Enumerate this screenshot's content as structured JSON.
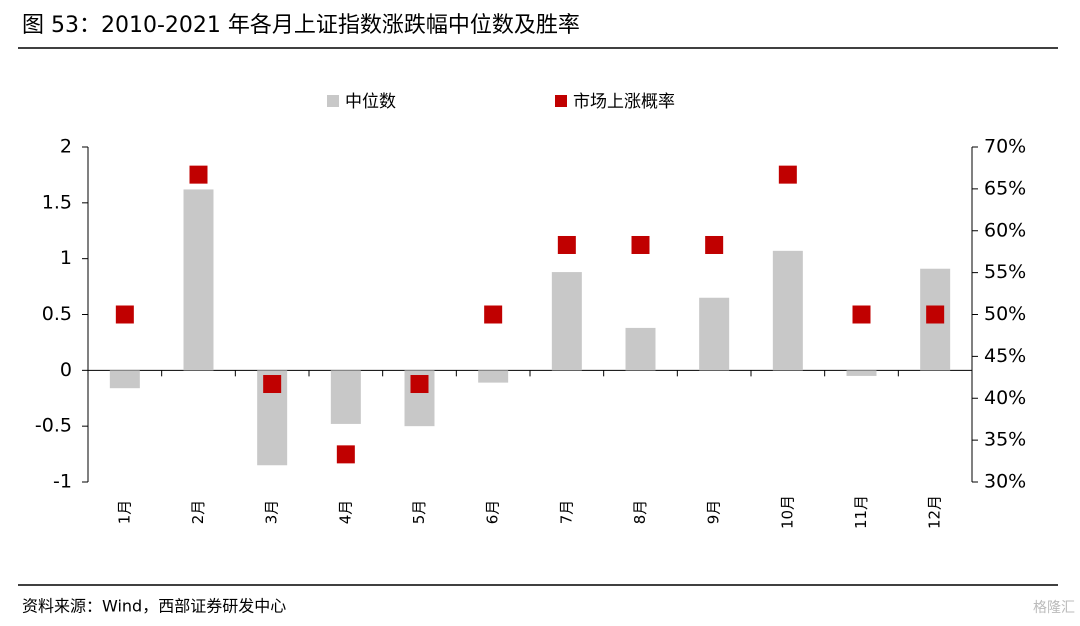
{
  "chart_data": {
    "type": "bar",
    "title": "图 53：2010-2021 年各月上证指数涨跌幅中位数及胜率",
    "source": "资料来源：Wind，西部证券研发中心",
    "watermark": "格隆汇",
    "categories": [
      "1月",
      "2月",
      "3月",
      "4月",
      "5月",
      "6月",
      "7月",
      "8月",
      "9月",
      "10月",
      "11月",
      "12月"
    ],
    "series": [
      {
        "name": "中位数",
        "type": "bar",
        "color": "#c8c8c8",
        "values": [
          -0.16,
          1.62,
          -0.85,
          -0.48,
          -0.5,
          -0.11,
          0.88,
          0.38,
          0.65,
          1.07,
          -0.05,
          0.91
        ]
      },
      {
        "name": "市场上涨概率",
        "type": "scatter",
        "axis": "y2",
        "color": "#c00000",
        "values": [
          50,
          66.7,
          41.7,
          33.3,
          41.7,
          50,
          58.3,
          58.3,
          58.3,
          66.7,
          50,
          50
        ]
      }
    ],
    "ylim": [
      -1,
      2
    ],
    "yticks": [
      -1,
      -0.5,
      0,
      0.5,
      1,
      1.5,
      2
    ],
    "y2lim": [
      30,
      70
    ],
    "y2ticks": [
      {
        "value": 30,
        "label": "30%"
      },
      {
        "value": 35,
        "label": "35%"
      },
      {
        "value": 40,
        "label": "40%"
      },
      {
        "value": 45,
        "label": "45%"
      },
      {
        "value": 50,
        "label": "50%"
      },
      {
        "value": 55,
        "label": "55%"
      },
      {
        "value": 60,
        "label": "60%"
      },
      {
        "value": 65,
        "label": "65%"
      },
      {
        "value": 70,
        "label": "70%"
      }
    ],
    "legend": "top"
  }
}
